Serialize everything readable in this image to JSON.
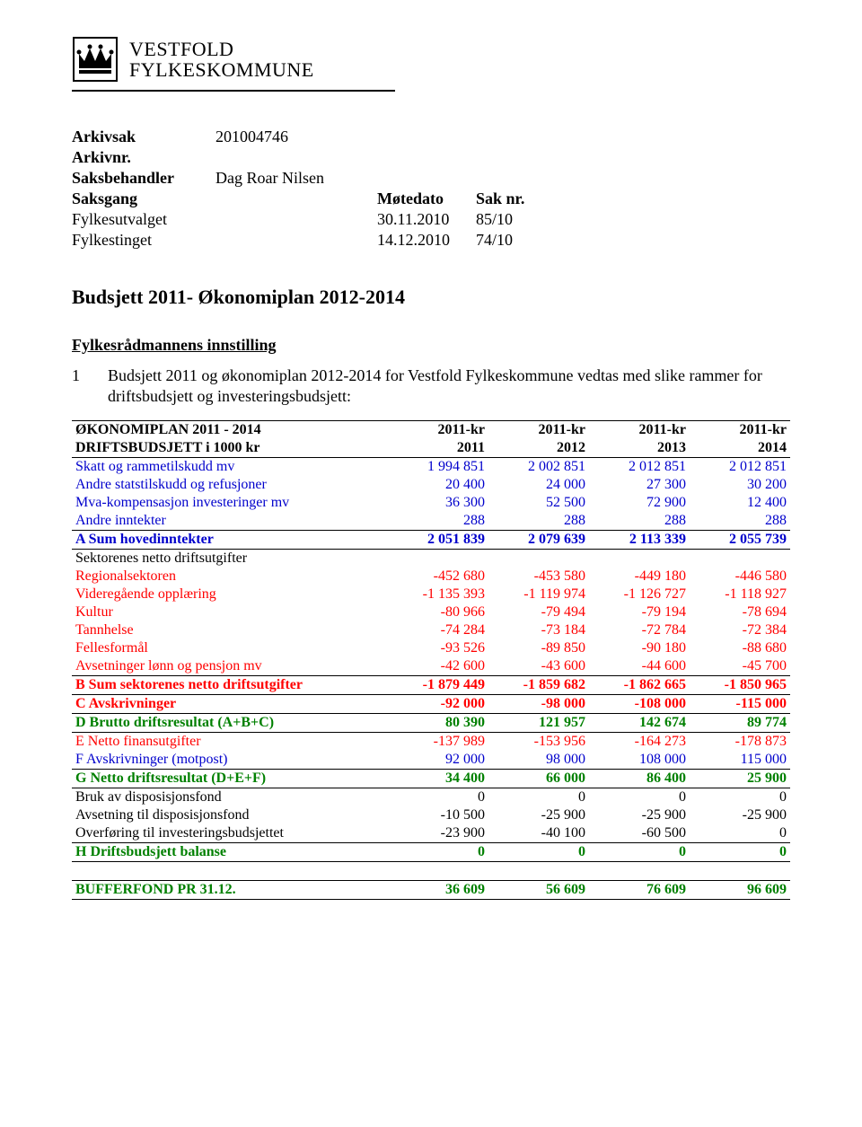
{
  "org": {
    "line1": "VESTFOLD",
    "line2": "FYLKESKOMMUNE"
  },
  "meta": {
    "arkivsak_label": "Arkivsak",
    "arkivsak_value": "201004746",
    "arkivnr_label": "Arkivnr.",
    "saksbehandler_label": "Saksbehandler",
    "saksbehandler_value": "Dag Roar Nilsen",
    "saksgang_label": "Saksgang",
    "motedato_label": "Møtedato",
    "saknr_label": "Sak nr.",
    "row1": {
      "a": "Fylkesutvalget",
      "b": "30.11.2010",
      "c": "85/10"
    },
    "row2": {
      "a": "Fylkestinget",
      "b": "14.12.2010",
      "c": "74/10"
    }
  },
  "title": "Budsjett 2011- Økonomiplan 2012-2014",
  "subheading": "Fylkesrådmannens innstilling",
  "intro_num": "1",
  "intro_text": "Budsjett 2011 og økonomiplan 2012-2014 for Vestfold Fylkeskommune vedtas med slike rammer for driftsbudsjett og investeringsbudsjett:",
  "table": {
    "rows": [
      {
        "cells": [
          "ØKONOMIPLAN 2011 - 2014",
          "2011-kr",
          "2011-kr",
          "2011-kr",
          "2011-kr"
        ],
        "style": "head",
        "borderTop": true,
        "bold": true
      },
      {
        "cells": [
          "DRIFTSBUDSJETT  i 1000 kr",
          "2011",
          "2012",
          "2013",
          "2014"
        ],
        "style": "head",
        "borderBottom": true,
        "bold": true
      },
      {
        "cells": [
          "Skatt og rammetilskudd mv",
          "1 994 851",
          "2 002 851",
          "2 012 851",
          "2 012 851"
        ],
        "style": "blue"
      },
      {
        "cells": [
          "Andre statstilskudd og refusjoner",
          "20 400",
          "24 000",
          "27 300",
          "30 200"
        ],
        "style": "blue"
      },
      {
        "cells": [
          "Mva-kompensasjon investeringer mv",
          "36 300",
          "52 500",
          "72 900",
          "12 400"
        ],
        "style": "blue"
      },
      {
        "cells": [
          "Andre inntekter",
          "288",
          "288",
          "288",
          "288"
        ],
        "style": "blue"
      },
      {
        "cells": [
          "A Sum hovedinntekter",
          "2 051 839",
          "2 079 639",
          "2 113 339",
          "2 055 739"
        ],
        "style": "blue",
        "borderTop": true,
        "borderBottom": true,
        "bold": true
      },
      {
        "cells": [
          "Sektorenes netto driftsutgifter",
          "",
          "",
          "",
          ""
        ],
        "style": "black"
      },
      {
        "cells": [
          "Regionalsektoren",
          "-452 680",
          "-453 580",
          "-449 180",
          "-446 580"
        ],
        "style": "red"
      },
      {
        "cells": [
          "Videregående opplæring",
          "-1 135 393",
          "-1 119 974",
          "-1 126 727",
          "-1 118 927"
        ],
        "style": "red"
      },
      {
        "cells": [
          "Kultur",
          "-80 966",
          "-79 494",
          "-79 194",
          "-78 694"
        ],
        "style": "red"
      },
      {
        "cells": [
          "Tannhelse",
          "-74 284",
          "-73 184",
          "-72 784",
          "-72 384"
        ],
        "style": "red"
      },
      {
        "cells": [
          "Fellesformål",
          "-93 526",
          "-89 850",
          "-90 180",
          "-88 680"
        ],
        "style": "red"
      },
      {
        "cells": [
          "Avsetninger lønn og pensjon mv",
          "-42 600",
          "-43 600",
          "-44 600",
          "-45 700"
        ],
        "style": "red"
      },
      {
        "cells": [
          "B Sum sektorenes netto driftsutgifter",
          "-1 879 449",
          "-1 859 682",
          "-1 862 665",
          "-1 850 965"
        ],
        "style": "red",
        "borderTop": true,
        "borderBottom": true,
        "bold": true
      },
      {
        "cells": [
          "C Avskrivninger",
          "-92 000",
          "-98 000",
          "-108 000",
          "-115 000"
        ],
        "style": "red",
        "bold": true
      },
      {
        "cells": [
          "D Brutto driftsresultat (A+B+C)",
          "80 390",
          "121 957",
          "142 674",
          "89 774"
        ],
        "style": "green",
        "borderTop": true,
        "borderBottom": true,
        "bold": true
      },
      {
        "cells": [
          "E Netto finansutgifter",
          "-137 989",
          "-153 956",
          "-164 273",
          "-178 873"
        ],
        "style": "red"
      },
      {
        "cells": [
          "F Avskrivninger (motpost)",
          "92 000",
          "98 000",
          "108 000",
          "115 000"
        ],
        "style": "blue"
      },
      {
        "cells": [
          "G Netto driftsresultat (D+E+F)",
          "34 400",
          "66 000",
          "86 400",
          "25 900"
        ],
        "style": "green",
        "borderTop": true,
        "borderBottom": true,
        "bold": true
      },
      {
        "cells": [
          "Bruk av disposisjonsfond",
          "0",
          "0",
          "0",
          "0"
        ],
        "style": "black"
      },
      {
        "cells": [
          "Avsetning til disposisjonsfond",
          "-10 500",
          "-25 900",
          "-25 900",
          "-25 900"
        ],
        "style": "black"
      },
      {
        "cells": [
          "Overføring til investeringsbudsjettet",
          "-23 900",
          "-40 100",
          "-60 500",
          "0"
        ],
        "style": "black"
      },
      {
        "cells": [
          "H Driftsbudsjett balanse",
          "0",
          "0",
          "0",
          "0"
        ],
        "style": "green",
        "borderTop": true,
        "borderBottom": true,
        "bold": true
      },
      {
        "cells": [
          "",
          "",
          "",
          "",
          ""
        ],
        "style": "black",
        "spacer": true
      },
      {
        "cells": [
          "BUFFERFOND PR 31.12.",
          "36 609",
          "56 609",
          "76 609",
          "96 609"
        ],
        "style": "green",
        "borderTop": true,
        "borderBottom": true,
        "bold": true
      }
    ]
  }
}
